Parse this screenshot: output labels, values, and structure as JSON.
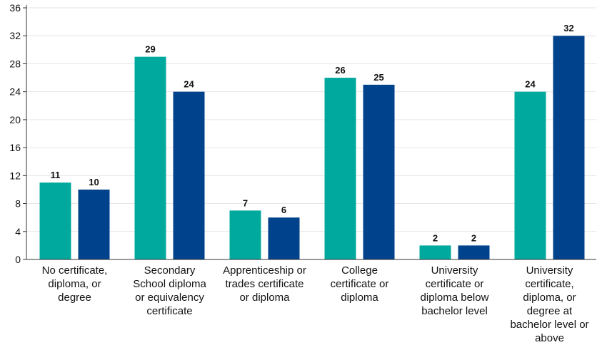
{
  "chart_data": {
    "type": "bar",
    "categories": [
      "No certificate,\ndiploma, or\ndegree",
      "Secondary\nSchool diploma\nor equivalency\ncertificate",
      "Apprenticeship or\ntrades certificate\nor diploma",
      "College\ncertificate or\ndiploma",
      "University\ncertificate or\ndiploma below\nbachelor level",
      "University\ncertificate,\ndiploma, or\ndegree at\nbachelor level or\nabove"
    ],
    "series": [
      {
        "values": [
          11,
          29,
          7,
          26,
          2,
          24
        ],
        "color": "#00a99d"
      },
      {
        "values": [
          10,
          24,
          6,
          25,
          2,
          32
        ],
        "color": "#00438c"
      }
    ],
    "yticks": [
      "0",
      "4",
      "8",
      "12",
      "16",
      "20",
      "24",
      "28",
      "32",
      "36"
    ],
    "ylim": [
      0,
      36
    ],
    "grid": true,
    "title": "",
    "xlabel": "",
    "ylabel": ""
  }
}
